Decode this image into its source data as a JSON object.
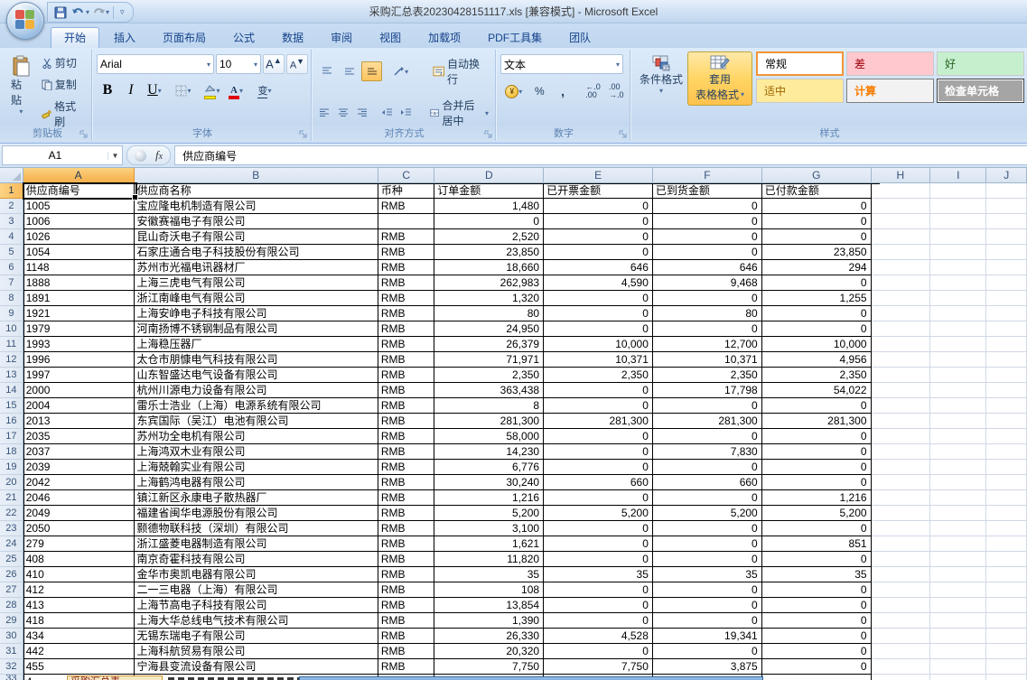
{
  "window": {
    "title": "采购汇总表20230428151117.xls  [兼容模式]  -  Microsoft Excel",
    "qat": {
      "save": "保存",
      "undo": "撤消",
      "redo": "恢复",
      "customize": "自定义快速访问工具栏"
    }
  },
  "ribbon": {
    "active_tab": "开始",
    "tabs": [
      "开始",
      "插入",
      "页面布局",
      "公式",
      "数据",
      "审阅",
      "视图",
      "加载项",
      "PDF工具集",
      "团队"
    ],
    "groups": {
      "clipboard": {
        "label": "剪贴板",
        "paste": "粘贴",
        "cut": "剪切",
        "copy": "复制",
        "format_painter": "格式刷"
      },
      "font": {
        "label": "字体",
        "font_name": "Arial",
        "font_size": "10",
        "bold": "B",
        "italic": "I",
        "underline": "U",
        "phonetic": "变"
      },
      "alignment": {
        "label": "对齐方式",
        "wrap_text": "自动换行",
        "merge_center": "合并后居中"
      },
      "number": {
        "label": "数字",
        "format_value": "文本",
        "percent": "%",
        "comma": ","
      },
      "styles": {
        "label": "样式",
        "conditional": "条件格式",
        "format_table_line1": "套用",
        "format_table_line2": "表格格式",
        "gallery": [
          {
            "label": "常规",
            "bg": "#ffffff",
            "color": "#000000",
            "selected": true,
            "bold": false,
            "border": ""
          },
          {
            "label": "差",
            "bg": "#ffc7ce",
            "color": "#9c0006",
            "selected": false,
            "bold": false,
            "border": ""
          },
          {
            "label": "好",
            "bg": "#c6efce",
            "color": "#276221",
            "selected": false,
            "bold": false,
            "border": ""
          },
          {
            "label": "适中",
            "bg": "#ffeb9c",
            "color": "#9c6500",
            "selected": false,
            "bold": false,
            "border": ""
          },
          {
            "label": "计算",
            "bg": "#f2f2f2",
            "color": "#fa7d00",
            "selected": false,
            "bold": true,
            "border": "#7f7f7f"
          },
          {
            "label": "检查单元格",
            "bg": "#a5a5a5",
            "color": "#ffffff",
            "selected": false,
            "bold": true,
            "border": "#3f3f3f"
          }
        ]
      }
    }
  },
  "formula_bar": {
    "name_box": "A1",
    "formula": "供应商编号"
  },
  "grid": {
    "columns": [
      "A",
      "B",
      "C",
      "D",
      "E",
      "F",
      "G",
      "H",
      "I",
      "J"
    ],
    "selected_cell": "A1",
    "selected_column": "A",
    "selected_row": "1",
    "headers": [
      "供应商编号",
      "供应商名称",
      "币种",
      "订单金额",
      "已开票金额",
      "已到货金额",
      "已付款金额"
    ],
    "rows": [
      {
        "id": "1005",
        "name": "宝应隆电机制造有限公司",
        "currency": "RMB",
        "order": "1,480",
        "invoiced": "0",
        "received": "0",
        "paid": "0"
      },
      {
        "id": "1006",
        "name": "安徽赛福电子有限公司",
        "currency": "",
        "order": "0",
        "invoiced": "0",
        "received": "0",
        "paid": "0"
      },
      {
        "id": "1026",
        "name": "昆山奇沃电子有限公司",
        "currency": "RMB",
        "order": "2,520",
        "invoiced": "0",
        "received": "0",
        "paid": "0"
      },
      {
        "id": "1054",
        "name": "石家庄通合电子科技股份有限公司",
        "currency": "RMB",
        "order": "23,850",
        "invoiced": "0",
        "received": "0",
        "paid": "23,850"
      },
      {
        "id": "1148",
        "name": "苏州市光福电讯器材厂",
        "currency": "RMB",
        "order": "18,660",
        "invoiced": "646",
        "received": "646",
        "paid": "294"
      },
      {
        "id": "1888",
        "name": "上海三虎电气有限公司",
        "currency": "RMB",
        "order": "262,983",
        "invoiced": "4,590",
        "received": "9,468",
        "paid": "0"
      },
      {
        "id": "1891",
        "name": "浙江南峰电气有限公司",
        "currency": "RMB",
        "order": "1,320",
        "invoiced": "0",
        "received": "0",
        "paid": "1,255"
      },
      {
        "id": "1921",
        "name": "上海安峥电子科技有限公司",
        "currency": "RMB",
        "order": "80",
        "invoiced": "0",
        "received": "80",
        "paid": "0"
      },
      {
        "id": "1979",
        "name": "河南扬博不锈钢制品有限公司",
        "currency": "RMB",
        "order": "24,950",
        "invoiced": "0",
        "received": "0",
        "paid": "0"
      },
      {
        "id": "1993",
        "name": "上海稳压器厂",
        "currency": "RMB",
        "order": "26,379",
        "invoiced": "10,000",
        "received": "12,700",
        "paid": "10,000"
      },
      {
        "id": "1996",
        "name": "太仓市朋慷电气科技有限公司",
        "currency": "RMB",
        "order": "71,971",
        "invoiced": "10,371",
        "received": "10,371",
        "paid": "4,956"
      },
      {
        "id": "1997",
        "name": "山东智盛达电气设备有限公司",
        "currency": "RMB",
        "order": "2,350",
        "invoiced": "2,350",
        "received": "2,350",
        "paid": "2,350"
      },
      {
        "id": "2000",
        "name": "杭州川源电力设备有限公司",
        "currency": "RMB",
        "order": "363,438",
        "invoiced": "0",
        "received": "17,798",
        "paid": "54,022"
      },
      {
        "id": "2004",
        "name": "雷乐士浩业（上海）电源系统有限公司",
        "currency": "RMB",
        "order": "8",
        "invoiced": "0",
        "received": "0",
        "paid": "0"
      },
      {
        "id": "2013",
        "name": "东宾国际（吴江）电池有限公司",
        "currency": "RMB",
        "order": "281,300",
        "invoiced": "281,300",
        "received": "281,300",
        "paid": "281,300"
      },
      {
        "id": "2035",
        "name": "苏州功全电机有限公司",
        "currency": "RMB",
        "order": "58,000",
        "invoiced": "0",
        "received": "0",
        "paid": "0"
      },
      {
        "id": "2037",
        "name": "上海鸿双木业有限公司",
        "currency": "RMB",
        "order": "14,230",
        "invoiced": "0",
        "received": "7,830",
        "paid": "0"
      },
      {
        "id": "2039",
        "name": "上海兢翰实业有限公司",
        "currency": "RMB",
        "order": "6,776",
        "invoiced": "0",
        "received": "0",
        "paid": "0"
      },
      {
        "id": "2042",
        "name": "上海鹤鸿电器有限公司",
        "currency": "RMB",
        "order": "30,240",
        "invoiced": "660",
        "received": "660",
        "paid": "0"
      },
      {
        "id": "2046",
        "name": "镇江新区永康电子散热器厂",
        "currency": "RMB",
        "order": "1,216",
        "invoiced": "0",
        "received": "0",
        "paid": "1,216"
      },
      {
        "id": "2049",
        "name": "福建省闽华电源股份有限公司",
        "currency": "RMB",
        "order": "5,200",
        "invoiced": "5,200",
        "received": "5,200",
        "paid": "5,200"
      },
      {
        "id": "2050",
        "name": "颢德物联科技（深圳）有限公司",
        "currency": "RMB",
        "order": "3,100",
        "invoiced": "0",
        "received": "0",
        "paid": "0"
      },
      {
        "id": "279",
        "name": "浙江盛菱电器制造有限公司",
        "currency": "RMB",
        "order": "1,621",
        "invoiced": "0",
        "received": "0",
        "paid": "851"
      },
      {
        "id": "408",
        "name": "南京奇霍科技有限公司",
        "currency": "RMB",
        "order": "11,820",
        "invoiced": "0",
        "received": "0",
        "paid": "0"
      },
      {
        "id": "410",
        "name": "金华市奥凯电器有限公司",
        "currency": "RMB",
        "order": "35",
        "invoiced": "35",
        "received": "35",
        "paid": "35"
      },
      {
        "id": "412",
        "name": "二一三电器（上海）有限公司",
        "currency": "RMB",
        "order": "108",
        "invoiced": "0",
        "received": "0",
        "paid": "0"
      },
      {
        "id": "413",
        "name": "上海节高电子科技有限公司",
        "currency": "RMB",
        "order": "13,854",
        "invoiced": "0",
        "received": "0",
        "paid": "0"
      },
      {
        "id": "418",
        "name": "上海大华总线电气技术有限公司",
        "currency": "RMB",
        "order": "1,390",
        "invoiced": "0",
        "received": "0",
        "paid": "0"
      },
      {
        "id": "434",
        "name": "无锡东瑞电子有限公司",
        "currency": "RMB",
        "order": "26,330",
        "invoiced": "4,528",
        "received": "19,341",
        "paid": "0"
      },
      {
        "id": "442",
        "name": "上海科航贸易有限公司",
        "currency": "RMB",
        "order": "20,320",
        "invoiced": "0",
        "received": "0",
        "paid": "0"
      },
      {
        "id": "455",
        "name": "宁海县变流设备有限公司",
        "currency": "RMB",
        "order": "7,750",
        "invoiced": "7,750",
        "received": "3,875",
        "paid": "0"
      }
    ],
    "partial_row": {
      "row_number": "33",
      "id_fragment": "4",
      "currency": "RMB",
      "tab_label": "采购汇总表"
    }
  }
}
